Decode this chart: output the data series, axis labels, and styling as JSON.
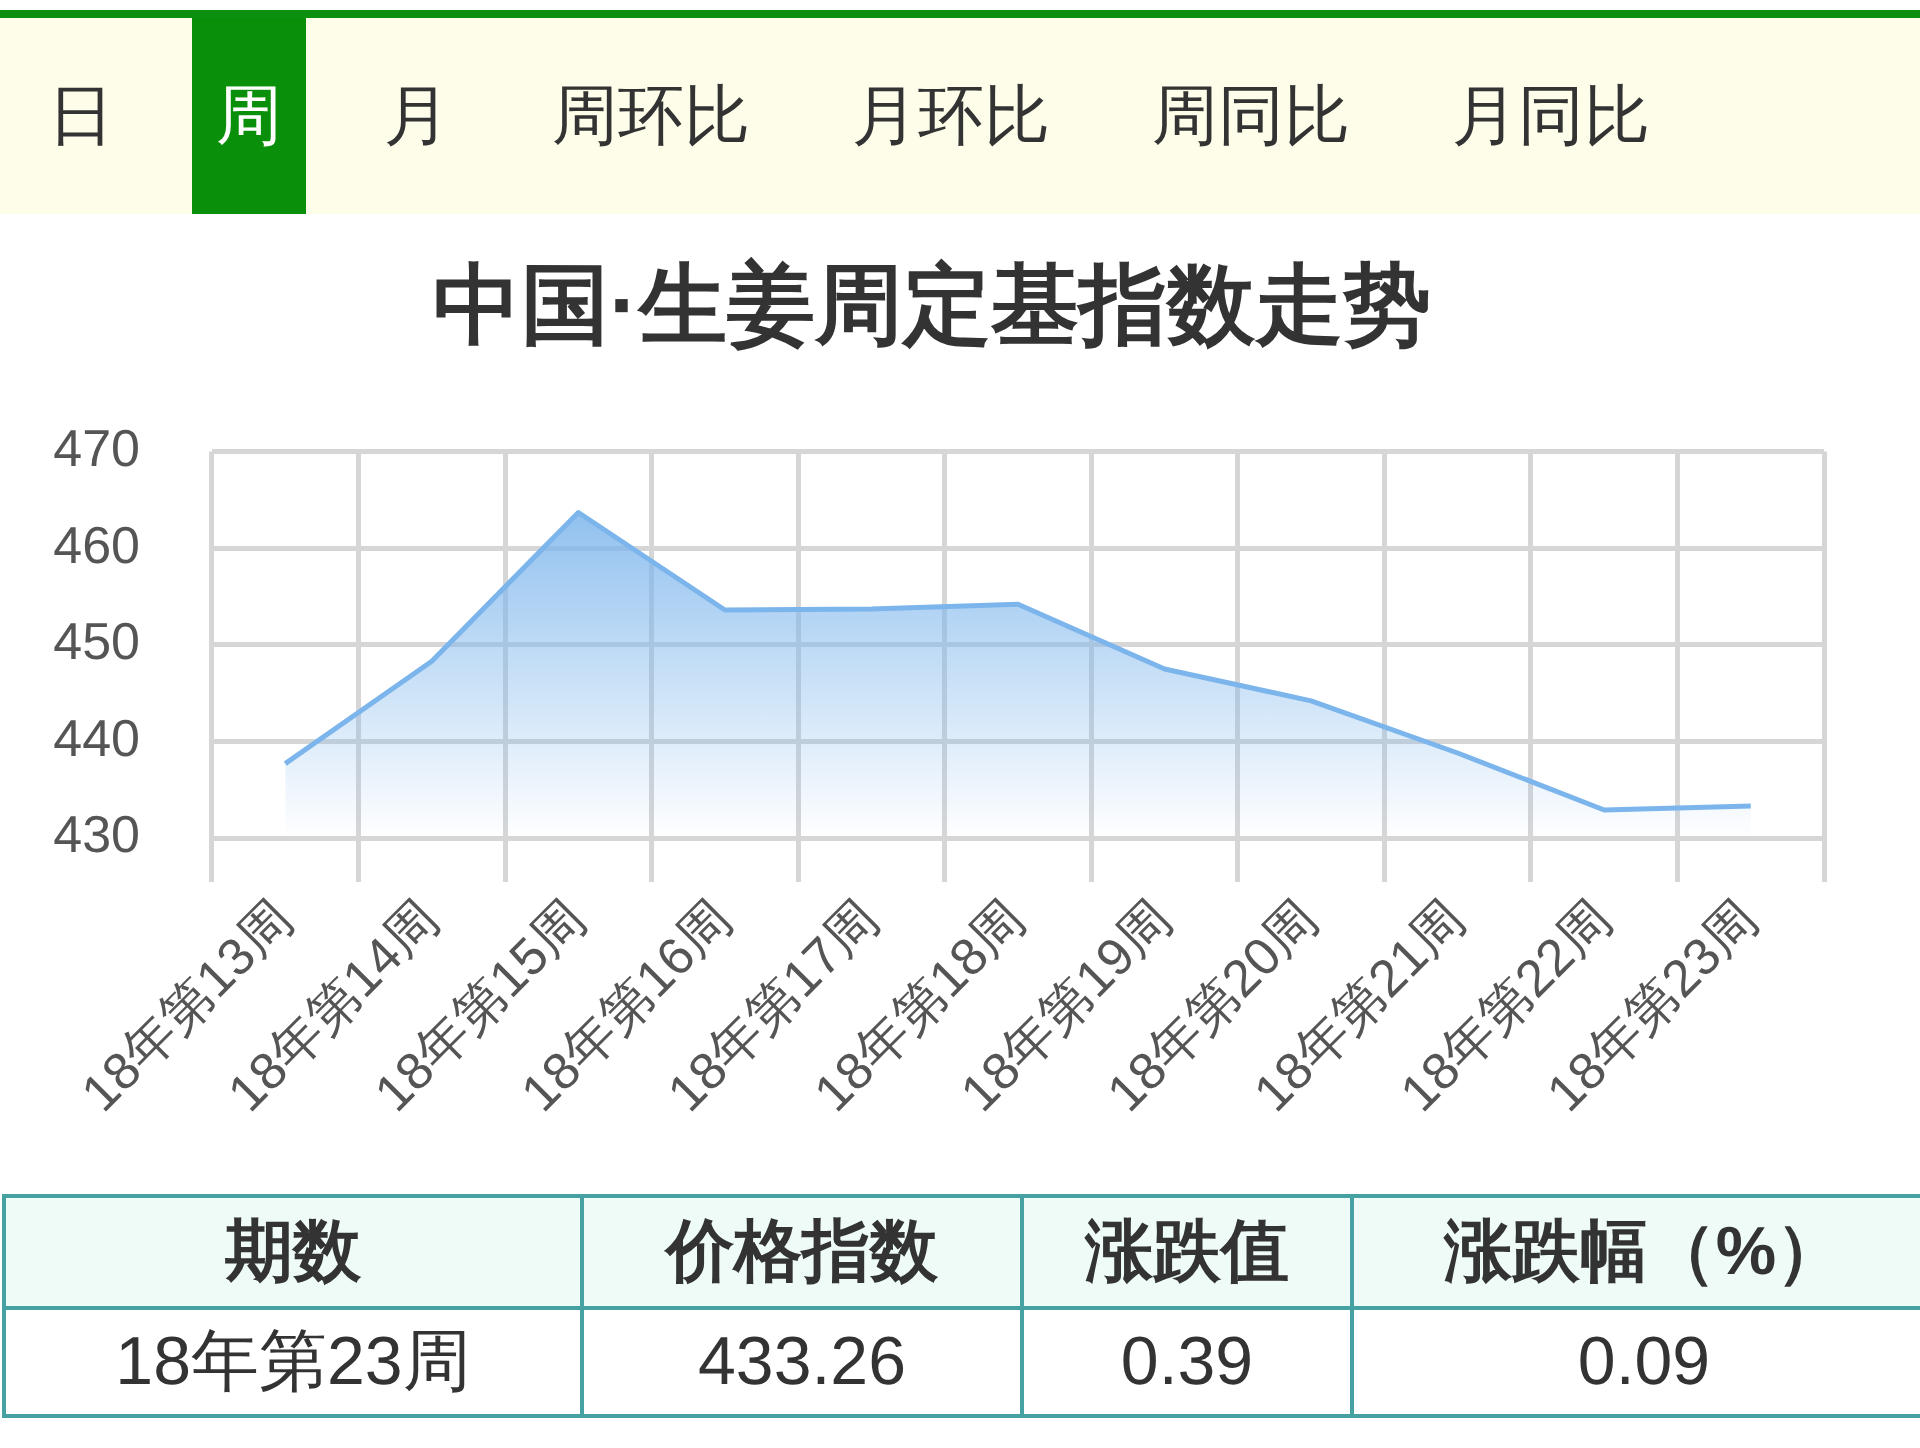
{
  "chart_data": [
    {
      "type": "other",
      "annotations": [
        "日",
        "周",
        "月",
        "周环比",
        "月环比",
        "周同比",
        "月同比"
      ]
    },
    {
      "type": "area",
      "title": "中国·生姜周定基指数走势",
      "categories": [
        "18年第13周",
        "18年第14周",
        "18年第15周",
        "18年第16周",
        "18年第17周",
        "18年第18周",
        "18年第19周",
        "18年第20周",
        "18年第21周",
        "18年第22周",
        "18年第23周"
      ],
      "series": [
        {
          "color": "#7cb5ec",
          "values": [
            437.7,
            448.3,
            463.7,
            453.6,
            453.7,
            454.2,
            447.5,
            444.2,
            438.8,
            432.9,
            433.3
          ]
        }
      ],
      "ylim": [
        430,
        470
      ],
      "yticks": [
        430,
        440,
        450,
        460,
        470
      ],
      "grid": true
    },
    {
      "type": "other",
      "annotations": [
        "期数",
        "价格指数",
        "涨跌值",
        "涨跌幅（%）",
        "18年第23周",
        "433.26",
        "0.39",
        "0.09"
      ]
    }
  ]
}
